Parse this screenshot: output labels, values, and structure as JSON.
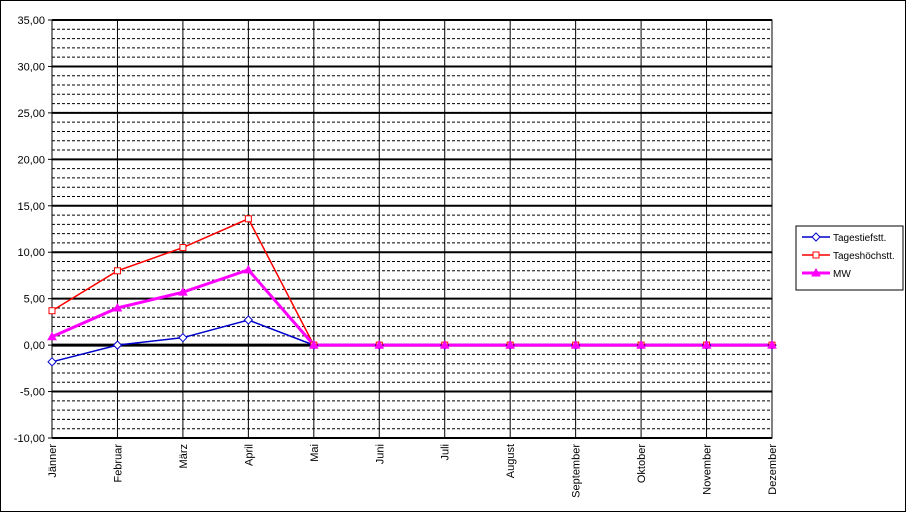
{
  "chart_data": {
    "type": "line",
    "categories": [
      "Jänner",
      "Februar",
      "März",
      "April",
      "Mai",
      "Juni",
      "Juli",
      "August",
      "September",
      "Oktober",
      "November",
      "Dezember"
    ],
    "series": [
      {
        "name": "Tagestiefstt.",
        "color": "#0000cc",
        "marker": "diamond",
        "values": [
          -1.8,
          0,
          0.8,
          2.7,
          0,
          0,
          0,
          0,
          0,
          0,
          0,
          0
        ]
      },
      {
        "name": "Tageshöchstt.",
        "color": "#ff0000",
        "marker": "square",
        "values": [
          3.7,
          8.0,
          10.5,
          13.6,
          0,
          0,
          0,
          0,
          0,
          0,
          0,
          0
        ]
      },
      {
        "name": "MW",
        "color": "#ff00ff",
        "marker": "triangle",
        "values": [
          0.9,
          4.0,
          5.7,
          8.1,
          0,
          0,
          0,
          0,
          0,
          0,
          0,
          0
        ]
      }
    ],
    "ylim": [
      -10,
      35
    ],
    "yticks": [
      {
        "value": -10,
        "label": "-10,00"
      },
      {
        "value": -5,
        "label": "-5,00"
      },
      {
        "value": 0,
        "label": "0,00"
      },
      {
        "value": 5,
        "label": "5,00"
      },
      {
        "value": 10,
        "label": "10,00"
      },
      {
        "value": 15,
        "label": "15,00"
      },
      {
        "value": 20,
        "label": "20,00"
      },
      {
        "value": 25,
        "label": "25,00"
      },
      {
        "value": 30,
        "label": "30,00"
      },
      {
        "value": 35,
        "label": "35,00"
      }
    ],
    "grid": true,
    "minor_grid": true,
    "legend": "right"
  }
}
